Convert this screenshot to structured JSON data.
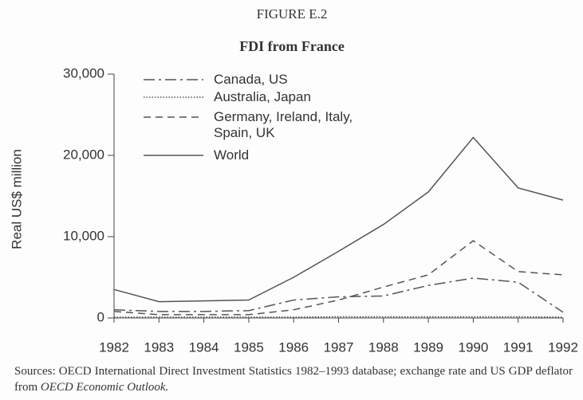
{
  "figure_label": "FIGURE E.2",
  "chart_data": {
    "type": "line",
    "title": "FDI from France",
    "ylabel": "Real US$ million",
    "x": [
      1982,
      1983,
      1984,
      1985,
      1986,
      1987,
      1988,
      1989,
      1990,
      1991,
      1992
    ],
    "xlim": [
      1982,
      1992
    ],
    "xticks": [
      1982,
      1983,
      1984,
      1985,
      1986,
      1987,
      1988,
      1989,
      1990,
      1991,
      1992
    ],
    "ylim": [
      0,
      30000
    ],
    "yticks": [
      0,
      {
        "value": 10000,
        "label": "10,000"
      },
      {
        "value": 20000,
        "label": "20,000"
      },
      {
        "value": 30000,
        "label": "30,000"
      }
    ],
    "series": [
      {
        "name": "Canada, US",
        "color": "#555",
        "style": "dash-dot",
        "values": [
          1000,
          800,
          800,
          900,
          2200,
          2600,
          2700,
          4000,
          4900,
          4400,
          700
        ]
      },
      {
        "name": "Australia, Japan",
        "color": "#555",
        "style": "dotted",
        "values": [
          100,
          100,
          100,
          100,
          100,
          150,
          150,
          150,
          150,
          150,
          100
        ]
      },
      {
        "name": "Germany, Ireland, Italy, Spain, UK",
        "color": "#555",
        "style": "dashed",
        "values": [
          800,
          400,
          400,
          400,
          1000,
          2200,
          3800,
          5300,
          9500,
          5700,
          5300
        ]
      },
      {
        "name": "World",
        "color": "#555",
        "style": "solid",
        "values": [
          3500,
          2000,
          2100,
          2200,
          5000,
          8200,
          11500,
          15500,
          22200,
          16000,
          14500
        ]
      }
    ]
  },
  "source": [
    "Sources: OECD International Direct Investment Statistics 1982–1993 database; exchange rate and US GDP deflator from ",
    "OECD Economic Outlook."
  ]
}
